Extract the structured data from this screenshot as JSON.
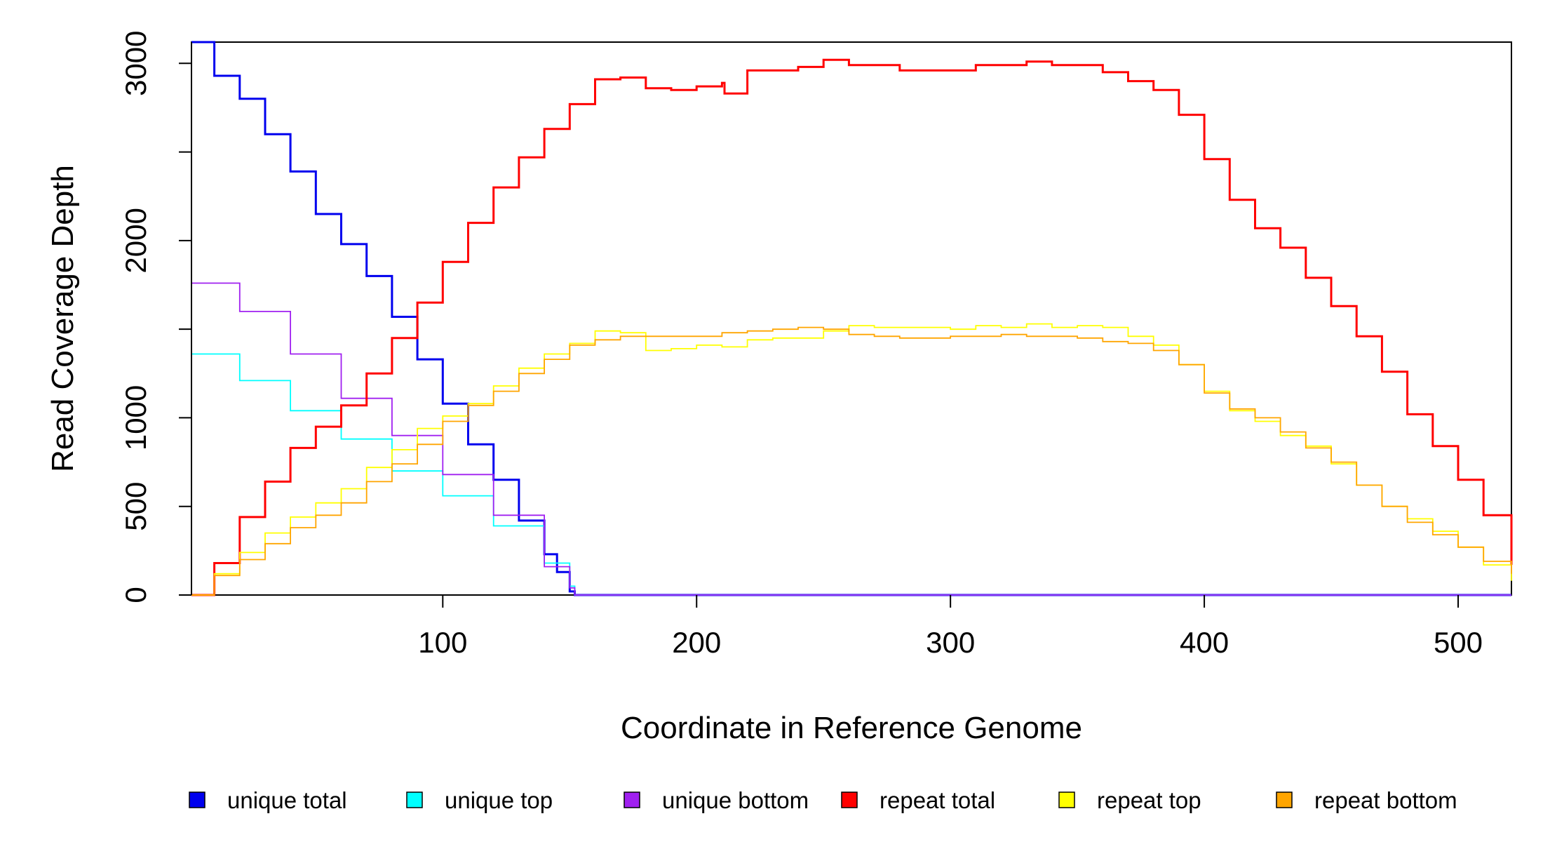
{
  "chart_data": {
    "type": "line",
    "title": "",
    "xlabel": "Coordinate in Reference Genome",
    "ylabel": "Read Coverage Depth",
    "xlim": [
      1,
      521
    ],
    "ylim": [
      0,
      3120
    ],
    "x_ticks": [
      100,
      200,
      300,
      400,
      500
    ],
    "y_ticks": [
      0,
      500,
      1000,
      2000,
      3000
    ],
    "y_minor_ticks": [
      1500,
      2500
    ],
    "grid": false,
    "legend_position": "bottom",
    "series": [
      {
        "name": "unique total",
        "color": "#0000ee",
        "x": [
          1,
          10,
          20,
          30,
          40,
          50,
          60,
          70,
          80,
          90,
          100,
          110,
          120,
          130,
          140,
          145,
          150,
          152,
          521
        ],
        "values": [
          3120,
          2930,
          2800,
          2600,
          2390,
          2150,
          1980,
          1800,
          1570,
          1330,
          1080,
          850,
          650,
          420,
          230,
          130,
          20,
          0,
          0
        ]
      },
      {
        "name": "unique top",
        "color": "#00ffff",
        "x": [
          1,
          20,
          40,
          60,
          80,
          100,
          120,
          140,
          150,
          152,
          521
        ],
        "values": [
          1360,
          1210,
          1040,
          880,
          700,
          560,
          390,
          180,
          50,
          0,
          0
        ]
      },
      {
        "name": "unique bottom",
        "color": "#a020f0",
        "x": [
          1,
          20,
          40,
          60,
          80,
          100,
          120,
          140,
          150,
          152,
          521
        ],
        "values": [
          1760,
          1600,
          1360,
          1110,
          900,
          680,
          450,
          160,
          40,
          0,
          0
        ]
      },
      {
        "name": "repeat total",
        "color": "#ff0000",
        "x": [
          1,
          10,
          20,
          30,
          40,
          50,
          60,
          70,
          80,
          90,
          100,
          110,
          120,
          130,
          140,
          150,
          160,
          170,
          180,
          190,
          200,
          210,
          211,
          220,
          230,
          240,
          250,
          260,
          270,
          280,
          290,
          300,
          310,
          320,
          330,
          340,
          350,
          360,
          370,
          380,
          390,
          400,
          410,
          420,
          430,
          440,
          450,
          460,
          470,
          480,
          490,
          500,
          510,
          521
        ],
        "values": [
          0,
          180,
          440,
          640,
          830,
          950,
          1070,
          1250,
          1450,
          1650,
          1880,
          2100,
          2300,
          2470,
          2630,
          2770,
          2910,
          2920,
          2860,
          2850,
          2870,
          2890,
          2830,
          2960,
          2960,
          2980,
          3020,
          2990,
          2990,
          2960,
          2960,
          2960,
          2990,
          2990,
          3010,
          2990,
          2990,
          2950,
          2900,
          2850,
          2710,
          2460,
          2230,
          2070,
          1960,
          1790,
          1630,
          1460,
          1260,
          1020,
          840,
          650,
          450,
          170
        ]
      },
      {
        "name": "repeat top",
        "color": "#ffff00",
        "x": [
          1,
          10,
          20,
          30,
          40,
          50,
          60,
          70,
          80,
          90,
          100,
          110,
          120,
          130,
          140,
          150,
          160,
          170,
          180,
          190,
          200,
          210,
          220,
          230,
          240,
          250,
          260,
          270,
          280,
          290,
          300,
          310,
          320,
          330,
          340,
          350,
          360,
          370,
          380,
          390,
          400,
          410,
          420,
          430,
          440,
          450,
          460,
          470,
          480,
          490,
          500,
          510,
          521
        ],
        "values": [
          0,
          120,
          240,
          350,
          440,
          520,
          600,
          720,
          820,
          940,
          1010,
          1080,
          1180,
          1280,
          1360,
          1420,
          1490,
          1480,
          1380,
          1390,
          1410,
          1400,
          1440,
          1450,
          1450,
          1490,
          1520,
          1510,
          1510,
          1510,
          1500,
          1520,
          1510,
          1530,
          1510,
          1520,
          1510,
          1460,
          1410,
          1300,
          1150,
          1040,
          980,
          900,
          840,
          740,
          620,
          500,
          430,
          360,
          270,
          170,
          80
        ]
      },
      {
        "name": "repeat bottom",
        "color": "#ffa500",
        "x": [
          1,
          10,
          20,
          30,
          40,
          50,
          60,
          70,
          80,
          90,
          100,
          110,
          120,
          130,
          140,
          150,
          160,
          170,
          180,
          190,
          200,
          210,
          220,
          230,
          240,
          250,
          260,
          270,
          280,
          290,
          300,
          310,
          320,
          330,
          340,
          350,
          360,
          370,
          380,
          390,
          400,
          410,
          420,
          430,
          440,
          450,
          460,
          470,
          480,
          490,
          500,
          510,
          521
        ],
        "values": [
          0,
          110,
          200,
          290,
          380,
          450,
          520,
          640,
          740,
          850,
          980,
          1070,
          1150,
          1250,
          1330,
          1410,
          1440,
          1460,
          1460,
          1460,
          1460,
          1480,
          1490,
          1500,
          1510,
          1500,
          1470,
          1460,
          1450,
          1450,
          1460,
          1460,
          1470,
          1460,
          1460,
          1450,
          1430,
          1420,
          1380,
          1300,
          1140,
          1050,
          1000,
          920,
          830,
          750,
          620,
          500,
          410,
          340,
          270,
          190,
          120
        ]
      }
    ]
  }
}
